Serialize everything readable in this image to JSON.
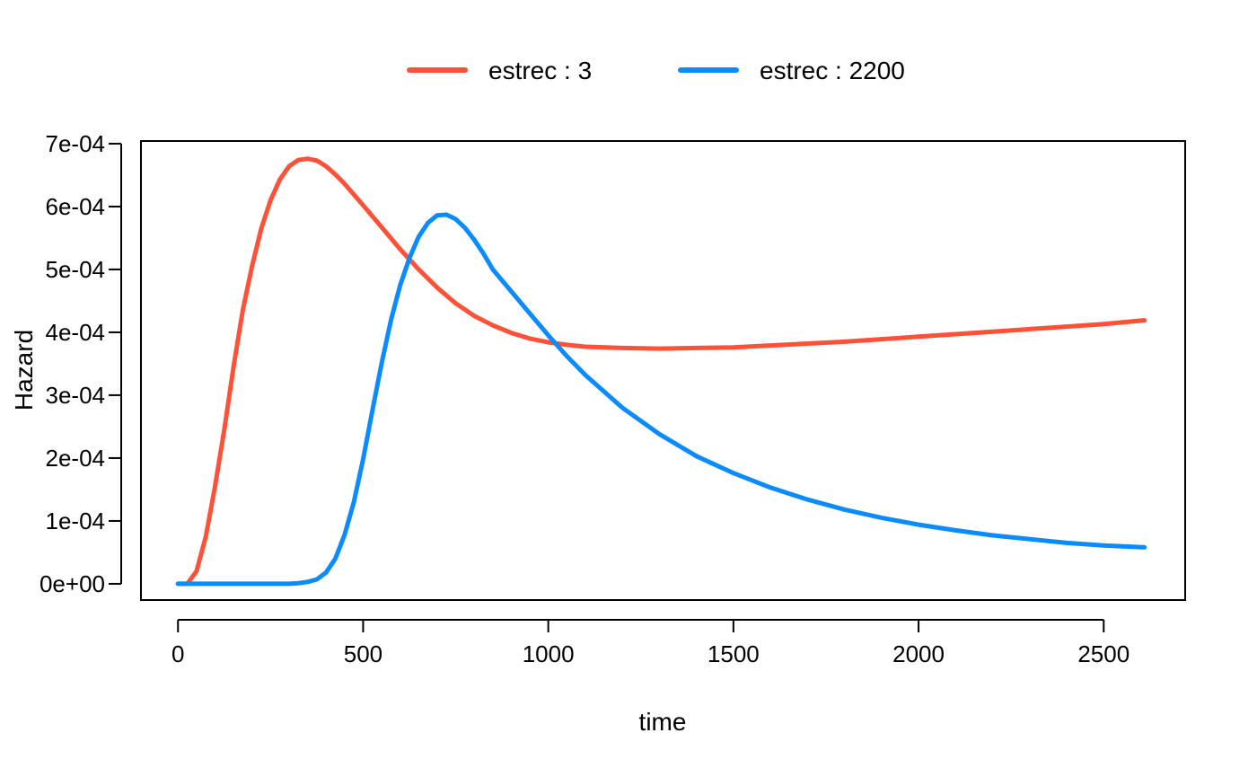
{
  "chart_data": {
    "type": "line",
    "xlabel": "time",
    "ylabel": "Hazard",
    "xlim": [
      -100,
      2720
    ],
    "ylim": [
      -2.58e-05,
      0.0007042
    ],
    "x_ticks": [
      0,
      500,
      1000,
      1500,
      2000,
      2500
    ],
    "x_tick_labels": [
      "0",
      "500",
      "1000",
      "1500",
      "2000",
      "2500"
    ],
    "y_ticks": [
      0,
      0.0001,
      0.0002,
      0.0003,
      0.0004,
      0.0005,
      0.0006,
      0.0007
    ],
    "y_tick_labels": [
      "0e+00",
      "1e-04",
      "2e-04",
      "3e-04",
      "4e-04",
      "5e-04",
      "6e-04",
      "7e-04"
    ],
    "grid": false,
    "legend_position": "top-center",
    "series": [
      {
        "name": "estrec : 3",
        "color": "#FF5038",
        "x": [
          0,
          25,
          50,
          75,
          100,
          125,
          150,
          175,
          200,
          225,
          250,
          275,
          300,
          325,
          350,
          375,
          400,
          425,
          450,
          500,
          550,
          600,
          650,
          700,
          750,
          800,
          850,
          900,
          950,
          1000,
          1050,
          1100,
          1200,
          1300,
          1400,
          1500,
          1600,
          1700,
          1800,
          1900,
          2000,
          2100,
          2200,
          2300,
          2400,
          2500,
          2610
        ],
        "y": [
          0.0,
          0.0,
          2e-05,
          7.5e-05,
          0.000155,
          0.000245,
          0.000345,
          0.000435,
          0.000505,
          0.000565,
          0.00061,
          0.000643,
          0.000664,
          0.000674,
          0.000676,
          0.000673,
          0.000664,
          0.000651,
          0.000636,
          0.000602,
          0.000567,
          0.000532,
          0.0005,
          0.000471,
          0.000446,
          0.000426,
          0.000411,
          0.000399,
          0.00039,
          0.000384,
          0.00038,
          0.000377,
          0.000375,
          0.000374,
          0.000375,
          0.000376,
          0.000379,
          0.000382,
          0.000385,
          0.000389,
          0.000393,
          0.000397,
          0.000401,
          0.000405,
          0.000409,
          0.000413,
          0.000419
        ]
      },
      {
        "name": "estrec : 2200",
        "color": "#0A8BFF",
        "x": [
          0,
          100,
          200,
          300,
          325,
          350,
          375,
          400,
          425,
          450,
          475,
          500,
          525,
          550,
          575,
          600,
          625,
          650,
          675,
          700,
          725,
          750,
          775,
          800,
          825,
          850,
          900,
          950,
          1000,
          1050,
          1100,
          1200,
          1300,
          1400,
          1500,
          1600,
          1700,
          1800,
          1900,
          2000,
          2100,
          2200,
          2300,
          2400,
          2500,
          2610
        ],
        "y": [
          0.0,
          0.0,
          0.0,
          0.0,
          1e-06,
          3e-06,
          7e-06,
          1.8e-05,
          4e-05,
          7.8e-05,
          0.00013,
          0.000198,
          0.000276,
          0.000351,
          0.000419,
          0.000475,
          0.000518,
          0.000552,
          0.000574,
          0.000586,
          0.000587,
          0.00058,
          0.000566,
          0.000547,
          0.000525,
          0.0005,
          0.000465,
          0.00043,
          0.000395,
          0.000362,
          0.000332,
          0.00028,
          0.000238,
          0.000203,
          0.000176,
          0.000153,
          0.000134,
          0.000118,
          0.000105,
          9.4e-05,
          8.5e-05,
          7.7e-05,
          7.1e-05,
          6.5e-05,
          6.1e-05,
          5.8e-05
        ]
      }
    ]
  }
}
